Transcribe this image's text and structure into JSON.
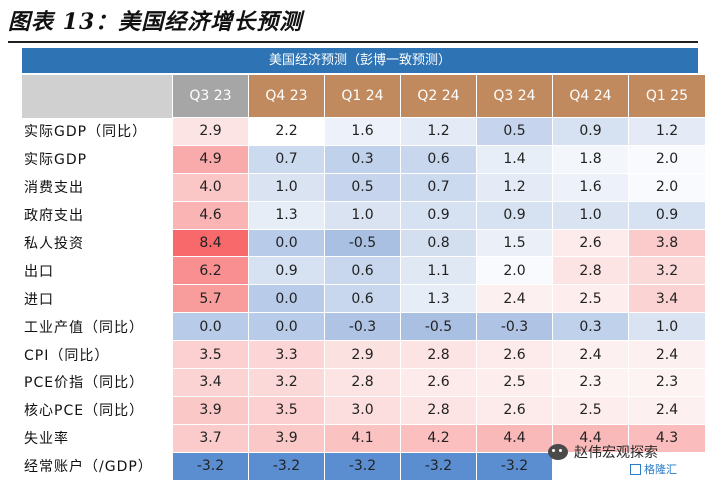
{
  "title": "图表 13：美国经济增长预测",
  "banner": "美国经济预测（彭博一致预测）",
  "columns": [
    {
      "label": "Q3 23",
      "color": "#a6a6a6"
    },
    {
      "label": "Q4 23",
      "color": "#c08a5e"
    },
    {
      "label": "Q1 24",
      "color": "#c08a5e"
    },
    {
      "label": "Q2 24",
      "color": "#c08a5e"
    },
    {
      "label": "Q3 24",
      "color": "#c08a5e"
    },
    {
      "label": "Q4 24",
      "color": "#c08a5e"
    },
    {
      "label": "Q1 25",
      "color": "#c08a5e"
    }
  ],
  "rows": [
    {
      "label": "实际GDP（同比）",
      "cells": [
        {
          "v": "2.9",
          "c": "#fce4e4"
        },
        {
          "v": "2.2",
          "c": "#ffffff"
        },
        {
          "v": "1.6",
          "c": "#edf2fa"
        },
        {
          "v": "1.2",
          "c": "#e4ebf6"
        },
        {
          "v": "0.5",
          "c": "#c6d5ed"
        },
        {
          "v": "0.9",
          "c": "#d6e1f1"
        },
        {
          "v": "1.2",
          "c": "#e4ebf6"
        }
      ]
    },
    {
      "label": "实际GDP",
      "cells": [
        {
          "v": "4.9",
          "c": "#f9aaaa"
        },
        {
          "v": "0.7",
          "c": "#ccdaef"
        },
        {
          "v": "0.3",
          "c": "#c0d1ec"
        },
        {
          "v": "0.6",
          "c": "#c9d7ee"
        },
        {
          "v": "1.4",
          "c": "#e8eef7"
        },
        {
          "v": "1.8",
          "c": "#f3f6fb"
        },
        {
          "v": "2.0",
          "c": "#f9fafd"
        }
      ]
    },
    {
      "label": "消费支出",
      "cells": [
        {
          "v": "4.0",
          "c": "#fbc6c6"
        },
        {
          "v": "1.0",
          "c": "#d9e3f2"
        },
        {
          "v": "0.5",
          "c": "#c6d5ed"
        },
        {
          "v": "0.7",
          "c": "#ccdaef"
        },
        {
          "v": "1.2",
          "c": "#e4ebf6"
        },
        {
          "v": "1.6",
          "c": "#edf2fa"
        },
        {
          "v": "2.0",
          "c": "#f9fafd"
        }
      ]
    },
    {
      "label": "政府支出",
      "cells": [
        {
          "v": "4.6",
          "c": "#fab4b4"
        },
        {
          "v": "1.3",
          "c": "#e6edf7"
        },
        {
          "v": "1.0",
          "c": "#d9e3f2"
        },
        {
          "v": "0.9",
          "c": "#d6e1f1"
        },
        {
          "v": "0.9",
          "c": "#d6e1f1"
        },
        {
          "v": "1.0",
          "c": "#d9e3f2"
        },
        {
          "v": "0.9",
          "c": "#d6e1f1"
        }
      ]
    },
    {
      "label": "私人投资",
      "cells": [
        {
          "v": "8.4",
          "c": "#f8696b"
        },
        {
          "v": "0.0",
          "c": "#b8cbe8"
        },
        {
          "v": "-0.5",
          "c": "#a9c0e3"
        },
        {
          "v": "0.8",
          "c": "#d3deef"
        },
        {
          "v": "1.5",
          "c": "#ebf0f8"
        },
        {
          "v": "2.6",
          "c": "#fdeaea"
        },
        {
          "v": "3.8",
          "c": "#fbcaca"
        }
      ]
    },
    {
      "label": "出口",
      "cells": [
        {
          "v": "6.2",
          "c": "#f98f90"
        },
        {
          "v": "0.9",
          "c": "#d6e1f1"
        },
        {
          "v": "0.6",
          "c": "#c9d7ee"
        },
        {
          "v": "1.1",
          "c": "#e0e8f4"
        },
        {
          "v": "2.0",
          "c": "#f9fafd"
        },
        {
          "v": "2.8",
          "c": "#fce4e4"
        },
        {
          "v": "3.2",
          "c": "#fcd9d9"
        }
      ]
    },
    {
      "label": "进口",
      "cells": [
        {
          "v": "5.7",
          "c": "#f99c9c"
        },
        {
          "v": "0.0",
          "c": "#b8cbe8"
        },
        {
          "v": "0.6",
          "c": "#c9d7ee"
        },
        {
          "v": "1.3",
          "c": "#e6edf7"
        },
        {
          "v": "2.4",
          "c": "#fdf0f0"
        },
        {
          "v": "2.5",
          "c": "#fdeded"
        },
        {
          "v": "3.4",
          "c": "#fcd3d3"
        }
      ]
    },
    {
      "label": "工业产值（同比）",
      "cells": [
        {
          "v": "0.0",
          "c": "#b8cbe8"
        },
        {
          "v": "0.0",
          "c": "#b8cbe8"
        },
        {
          "v": "-0.3",
          "c": "#afc4e5"
        },
        {
          "v": "-0.5",
          "c": "#a9c0e3"
        },
        {
          "v": "-0.3",
          "c": "#afc4e5"
        },
        {
          "v": "0.3",
          "c": "#c0d1ec"
        },
        {
          "v": "1.0",
          "c": "#d9e3f2"
        }
      ]
    },
    {
      "label": "CPI（同比）",
      "cells": [
        {
          "v": "3.5",
          "c": "#fcd0d0"
        },
        {
          "v": "3.3",
          "c": "#fcd6d6"
        },
        {
          "v": "2.9",
          "c": "#fce1e1"
        },
        {
          "v": "2.8",
          "c": "#fce4e4"
        },
        {
          "v": "2.6",
          "c": "#fdeaea"
        },
        {
          "v": "2.4",
          "c": "#fdf0f0"
        },
        {
          "v": "2.4",
          "c": "#fdf0f0"
        }
      ]
    },
    {
      "label": "PCE价指（同比）",
      "cells": [
        {
          "v": "3.4",
          "c": "#fcd3d3"
        },
        {
          "v": "3.2",
          "c": "#fcd9d9"
        },
        {
          "v": "2.8",
          "c": "#fce4e4"
        },
        {
          "v": "2.6",
          "c": "#fdeaea"
        },
        {
          "v": "2.5",
          "c": "#fdeded"
        },
        {
          "v": "2.3",
          "c": "#fdf3f3"
        },
        {
          "v": "2.3",
          "c": "#fdf3f3"
        }
      ]
    },
    {
      "label": "核心PCE（同比）",
      "cells": [
        {
          "v": "3.9",
          "c": "#fbc8c8"
        },
        {
          "v": "3.5",
          "c": "#fcd0d0"
        },
        {
          "v": "3.0",
          "c": "#fcdede"
        },
        {
          "v": "2.8",
          "c": "#fce4e4"
        },
        {
          "v": "2.6",
          "c": "#fdeaea"
        },
        {
          "v": "2.5",
          "c": "#fdeded"
        },
        {
          "v": "2.4",
          "c": "#fdf0f0"
        }
      ]
    },
    {
      "label": "失业率",
      "cells": [
        {
          "v": "3.7",
          "c": "#fbcbcb"
        },
        {
          "v": "3.9",
          "c": "#fbc8c8"
        },
        {
          "v": "4.1",
          "c": "#fbc2c2"
        },
        {
          "v": "4.2",
          "c": "#fbbfbf"
        },
        {
          "v": "4.4",
          "c": "#fab9b9"
        },
        {
          "v": "4.4",
          "c": "#fab9b9"
        },
        {
          "v": "4.3",
          "c": "#fabcbc"
        }
      ]
    },
    {
      "label": "经常账户（/GDP）",
      "cells": [
        {
          "v": "-3.2",
          "c": "#5b8ed0"
        },
        {
          "v": "-3.2",
          "c": "#5b8ed0"
        },
        {
          "v": "-3.2",
          "c": "#5b8ed0"
        },
        {
          "v": "-3.2",
          "c": "#5b8ed0"
        },
        {
          "v": "-3.2",
          "c": "#5b8ed0"
        },
        {
          "v": "",
          "c": "#ffffff"
        },
        {
          "v": "",
          "c": "#ffffff"
        }
      ]
    }
  ],
  "watermark": "赵伟宏观探索",
  "source_logo": "格隆汇"
}
